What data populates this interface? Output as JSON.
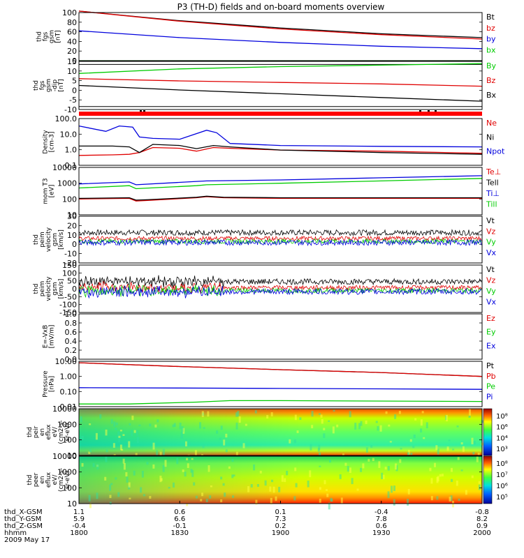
{
  "title": "P3 (TH-D) fields and on-board moments overview",
  "colors": {
    "black": "#000000",
    "red": "#e00000",
    "green": "#00cc00",
    "blue": "#0000dd",
    "brightred": "#ff0000"
  },
  "chart_data": [
    {
      "type": "line",
      "id": "fgs_mag",
      "ylabel": [
        "thd",
        "fgs",
        "gsm",
        "[nT]"
      ],
      "ylim": [
        0,
        100
      ],
      "yticks": [
        "100",
        "80",
        "60",
        "40",
        "20",
        "0"
      ],
      "series": [
        {
          "name": "Bt",
          "color": "black",
          "x": [
            1800,
            1830,
            1900,
            1930,
            2000
          ],
          "values": [
            103,
            83,
            68,
            56,
            48
          ]
        },
        {
          "name": "bz",
          "color": "red",
          "x": [
            1800,
            1830,
            1900,
            1930,
            2000
          ],
          "values": [
            103,
            82,
            66,
            54,
            45
          ]
        },
        {
          "name": "by",
          "color": "blue",
          "x": [
            1800,
            1830,
            1900,
            1930,
            2000
          ],
          "values": [
            62,
            48,
            38,
            30,
            25
          ]
        },
        {
          "name": "bx",
          "color": "green",
          "x": [
            1800,
            2000
          ],
          "values": [
            0,
            0
          ]
        }
      ]
    },
    {
      "type": "line",
      "id": "fgs_dip",
      "ylabel": [
        "thd",
        "fgs",
        "gsm",
        "-dip",
        "[nT]"
      ],
      "ylim": [
        -15,
        17
      ],
      "yticks": [
        "15",
        "10",
        "5",
        "0",
        "-5",
        "-10"
      ],
      "series": [
        {
          "name": "By",
          "color": "green",
          "x": [
            1800,
            1830,
            1900,
            1930,
            2000
          ],
          "values": [
            9,
            12,
            13.5,
            14.5,
            15.5
          ]
        },
        {
          "name": "Bz",
          "color": "red",
          "x": [
            1800,
            1830,
            1900,
            1930,
            2000
          ],
          "values": [
            5.5,
            4,
            3,
            2,
            0.5
          ]
        },
        {
          "name": "Bx",
          "color": "black",
          "x": [
            1800,
            1830,
            1900,
            1930,
            2000
          ],
          "values": [
            1,
            -2,
            -4.5,
            -7,
            -9.5
          ]
        }
      ]
    },
    {
      "type": "line",
      "id": "density",
      "log": true,
      "ylabel": [
        "Density",
        "[cm-3]"
      ],
      "ylim": [
        0.1,
        200
      ],
      "yticks": [
        "100.0",
        "10.0",
        "1.0",
        "0.1"
      ],
      "series": [
        {
          "name": "Ne",
          "color": "red",
          "x": [
            1800,
            1810,
            1815,
            1818,
            1822,
            1830,
            1835,
            1840,
            1845,
            1900,
            1930,
            2000
          ],
          "values": [
            0.5,
            0.55,
            0.6,
            0.8,
            1.8,
            1.6,
            1.0,
            1.8,
            1.6,
            1.2,
            1.0,
            0.7
          ]
        },
        {
          "name": "Ni",
          "color": "black",
          "x": [
            1800,
            1810,
            1815,
            1818,
            1822,
            1830,
            1835,
            1840,
            1845,
            1900,
            1930,
            2000
          ],
          "values": [
            2.3,
            2.3,
            2.0,
            0.8,
            3.0,
            2.5,
            1.5,
            2.5,
            2.0,
            1.2,
            0.8,
            0.6
          ]
        },
        {
          "name": "Npot",
          "color": "blue",
          "x": [
            1800,
            1808,
            1812,
            1816,
            1818,
            1822,
            1830,
            1838,
            1841,
            1845,
            1900,
            1930,
            2000
          ],
          "values": [
            60,
            25,
            60,
            50,
            10,
            8,
            7,
            30,
            20,
            3.5,
            2.5,
            2.2,
            2.0
          ]
        }
      ]
    },
    {
      "type": "line",
      "id": "temp",
      "log": true,
      "ylabel": [
        "mom T3",
        "[eV]"
      ],
      "ylim": [
        10,
        10000
      ],
      "yticks": [
        "10000",
        "1000",
        "100",
        "10"
      ],
      "series": [
        {
          "name": "Te⊥",
          "color": "red",
          "x": [
            1800,
            1815,
            1817,
            1820,
            1835,
            1838,
            1843,
            1900,
            1930,
            2000
          ],
          "values": [
            100,
            110,
            75,
            80,
            120,
            140,
            120,
            110,
            110,
            110
          ]
        },
        {
          "name": "Tell",
          "color": "black",
          "x": [
            1800,
            1815,
            1817,
            1820,
            1835,
            1838,
            1843,
            1900,
            1930,
            2000
          ],
          "values": [
            110,
            120,
            85,
            90,
            130,
            150,
            130,
            120,
            120,
            120
          ]
        },
        {
          "name": "Ti⊥",
          "color": "blue",
          "x": [
            1800,
            1815,
            1817,
            1835,
            1838,
            1900,
            1930,
            2000
          ],
          "values": [
            900,
            1200,
            800,
            1300,
            1400,
            1600,
            2200,
            3000
          ]
        },
        {
          "name": "Till",
          "color": "green",
          "x": [
            1800,
            1815,
            1817,
            1835,
            1838,
            1900,
            1930,
            2000
          ],
          "values": [
            500,
            700,
            450,
            700,
            800,
            1000,
            1400,
            2000
          ]
        }
      ]
    },
    {
      "type": "line",
      "id": "perm_vel",
      "ylabel": [
        "thd",
        "peim",
        "velocity",
        "gsm",
        "[km/s]"
      ],
      "ylim": [
        -20,
        30
      ],
      "yticks": [
        "30",
        "20",
        "10",
        "0",
        "-10",
        "-20"
      ],
      "series": [
        {
          "name": "Vt",
          "color": "black"
        },
        {
          "name": "Vz",
          "color": "red"
        },
        {
          "name": "Vy",
          "color": "green"
        },
        {
          "name": "Vx",
          "color": "blue"
        }
      ]
    },
    {
      "type": "line",
      "id": "peim_vel",
      "ylabel": [
        "thd",
        "peim",
        "velocity",
        "gsm",
        "[km/s]"
      ],
      "ylim": [
        -150,
        150
      ],
      "yticks": [
        "150",
        "100",
        "50",
        "0",
        "-50",
        "-100",
        "-150"
      ],
      "series": [
        {
          "name": "Vt",
          "color": "black"
        },
        {
          "name": "Vz",
          "color": "red"
        },
        {
          "name": "Vy",
          "color": "green"
        },
        {
          "name": "Vx",
          "color": "blue"
        }
      ]
    },
    {
      "type": "line",
      "id": "efield",
      "ylabel": [
        "E=-VxB",
        "[mV/m]"
      ],
      "ylim": [
        0,
        1
      ],
      "yticks": [
        "1.0",
        "0.8",
        "0.6",
        "0.4",
        "0.2",
        "0.0"
      ],
      "series": [
        {
          "name": "Ez",
          "color": "red"
        },
        {
          "name": "Ey",
          "color": "green"
        },
        {
          "name": "Ex",
          "color": "blue"
        }
      ]
    },
    {
      "type": "line",
      "id": "pressure",
      "log": true,
      "ylabel": [
        "Pressure",
        "[nPa]"
      ],
      "ylim": [
        0.01,
        10
      ],
      "yticks": [
        "10.00",
        "1.00",
        "0.10",
        "0.01"
      ],
      "series": [
        {
          "name": "Pt",
          "color": "black",
          "x": [
            1800,
            1830,
            1900,
            1930,
            2000
          ],
          "values": [
            8,
            4.5,
            2.8,
            1.8,
            1.0
          ]
        },
        {
          "name": "Pb",
          "color": "red",
          "x": [
            1800,
            1830,
            1900,
            1930,
            2000
          ],
          "values": [
            8,
            4.5,
            2.8,
            1.8,
            1.0
          ]
        },
        {
          "name": "Pe",
          "color": "green",
          "x": [
            1800,
            1815,
            1835,
            1845,
            1900,
            2000
          ],
          "values": [
            0.015,
            0.015,
            0.02,
            0.025,
            0.025,
            0.022
          ]
        },
        {
          "name": "Pi",
          "color": "blue",
          "x": [
            1800,
            1830,
            1900,
            1930,
            2000
          ],
          "values": [
            0.18,
            0.17,
            0.16,
            0.15,
            0.14
          ]
        }
      ]
    },
    {
      "type": "heatmap",
      "id": "peir",
      "ylabel": [
        "thd",
        "peir",
        "en",
        "eflux",
        "eV/",
        "(cm2-s-",
        "sr-eV)"
      ],
      "log": true,
      "ylim": [
        8,
        20000
      ],
      "yticks": [
        "10000",
        "1000",
        "100",
        "10"
      ],
      "colorbar_ticks": [
        "10⁸",
        "10⁶",
        "10⁴",
        "10³"
      ]
    },
    {
      "type": "heatmap",
      "id": "peer",
      "ylabel": [
        "thd",
        "peer",
        "en",
        "eflux",
        "eV/",
        "(cm2-s-",
        "sr-eV)"
      ],
      "log": true,
      "ylim": [
        8,
        20000
      ],
      "yticks": [
        "10000",
        "1000",
        "100",
        "10"
      ],
      "colorbar_ticks": [
        "10⁸",
        "10⁷",
        "10⁶",
        "10⁵"
      ]
    }
  ],
  "xaxis": {
    "ticks": [
      "1800",
      "1830",
      "1900",
      "1930",
      "2000"
    ],
    "rows": [
      {
        "label": "thd_X-GSM",
        "values": [
          "1.1",
          "0.6",
          "0.1",
          "-0.4",
          "-0.8"
        ]
      },
      {
        "label": "thd_Y-GSM",
        "values": [
          "5.9",
          "6.6",
          "7.3",
          "7.8",
          "8.2"
        ]
      },
      {
        "label": "thd_Z-GSM",
        "values": [
          "-0.4",
          "-0.1",
          "0.2",
          "0.6",
          "0.9"
        ]
      },
      {
        "label": "hhmm",
        "values": [
          "1800",
          "1830",
          "1900",
          "1930",
          "2000"
        ]
      }
    ],
    "date": "2009 May 17"
  }
}
